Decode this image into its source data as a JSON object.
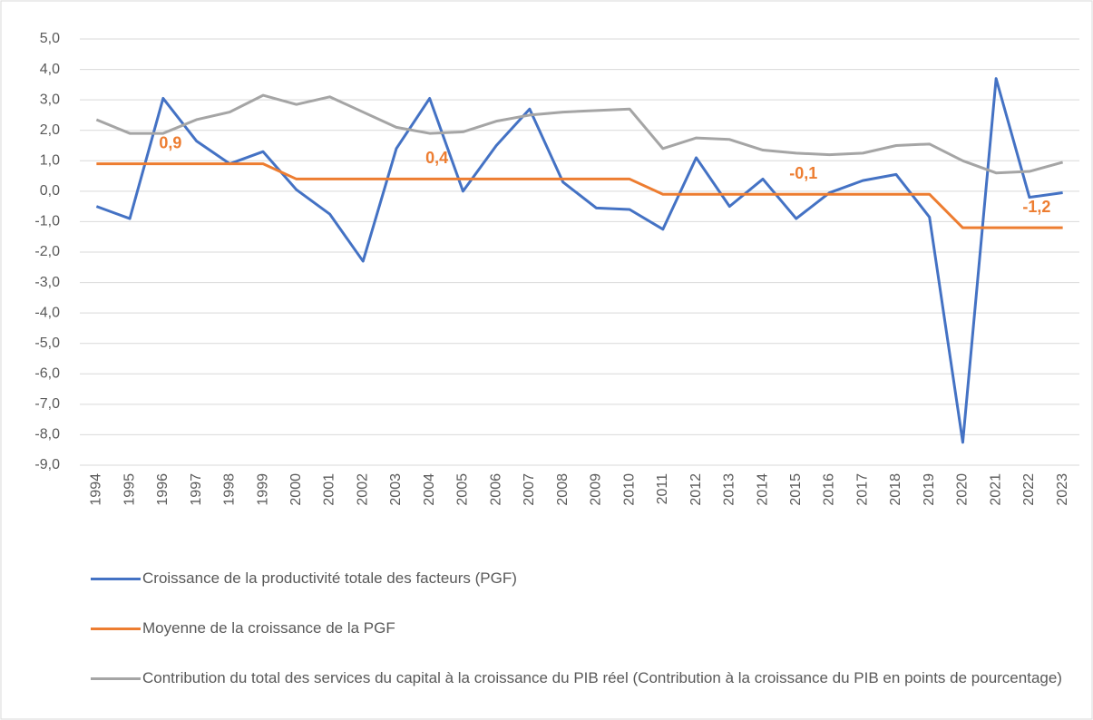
{
  "chart_data": {
    "type": "line",
    "categories": [
      "1994",
      "1995",
      "1996",
      "1997",
      "1998",
      "1999",
      "2000",
      "2001",
      "2002",
      "2003",
      "2004",
      "2005",
      "2006",
      "2007",
      "2008",
      "2009",
      "2010",
      "2011",
      "2012",
      "2013",
      "2014",
      "2015",
      "2016",
      "2017",
      "2018",
      "2019",
      "2020",
      "2021",
      "2022",
      "2023"
    ],
    "series": [
      {
        "name": "Croissance de la productivité totale des facteurs (PGF)",
        "color": "#4472c4",
        "values": [
          -0.5,
          -0.9,
          3.05,
          1.65,
          0.9,
          1.3,
          0.05,
          -0.75,
          -2.3,
          1.4,
          3.05,
          0.0,
          1.5,
          2.7,
          0.3,
          -0.55,
          -0.6,
          -1.25,
          1.1,
          -0.5,
          0.4,
          -0.9,
          -0.05,
          0.35,
          0.55,
          -0.85,
          -8.25,
          3.7,
          -0.2,
          -0.05
        ]
      },
      {
        "name": "Moyenne de la croissance de la PGF",
        "color": "#ed7d31",
        "values": [
          0.9,
          0.9,
          0.9,
          0.9,
          0.9,
          0.9,
          0.4,
          0.4,
          0.4,
          0.4,
          0.4,
          0.4,
          0.4,
          0.4,
          0.4,
          0.4,
          0.4,
          -0.1,
          -0.1,
          -0.1,
          -0.1,
          -0.1,
          -0.1,
          -0.1,
          -0.1,
          -0.1,
          -1.2,
          -1.2,
          -1.2,
          -1.2
        ],
        "value_labels": [
          null,
          null,
          "0,9",
          null,
          null,
          null,
          null,
          null,
          null,
          null,
          "0,4",
          null,
          null,
          null,
          null,
          null,
          null,
          null,
          null,
          null,
          null,
          "-0,1",
          null,
          null,
          null,
          null,
          null,
          null,
          "-1,2",
          null
        ]
      },
      {
        "name": "Contribution du total des services du capital à la croissance du PIB réel (Contribution à la croissance du PIB en points de pourcentage)",
        "color": "#a5a5a5",
        "values": [
          2.35,
          1.9,
          1.9,
          2.35,
          2.6,
          3.15,
          2.85,
          3.1,
          2.6,
          2.1,
          1.9,
          1.95,
          2.3,
          2.5,
          2.6,
          2.65,
          2.7,
          1.4,
          1.75,
          1.7,
          1.35,
          1.25,
          1.2,
          1.25,
          1.5,
          1.55,
          1.0,
          0.6,
          0.65,
          0.95
        ]
      }
    ],
    "ylim": [
      -9,
      5
    ],
    "yticks": [
      {
        "value": -9,
        "label": "-9,0"
      },
      {
        "value": -8,
        "label": "-8,0"
      },
      {
        "value": -7,
        "label": "-7,0"
      },
      {
        "value": -6,
        "label": "-6,0"
      },
      {
        "value": -5,
        "label": "-5,0"
      },
      {
        "value": -4,
        "label": "-4,0"
      },
      {
        "value": -3,
        "label": "-3,0"
      },
      {
        "value": -2,
        "label": "-2,0"
      },
      {
        "value": -1,
        "label": "-1,0"
      },
      {
        "value": 0,
        "label": "0,0"
      },
      {
        "value": 1,
        "label": "1,0"
      },
      {
        "value": 2,
        "label": "2,0"
      },
      {
        "value": 3,
        "label": "3,0"
      },
      {
        "value": 4,
        "label": "4,0"
      },
      {
        "value": 5,
        "label": "5,0"
      }
    ],
    "grid": true,
    "legend": "bottom"
  }
}
